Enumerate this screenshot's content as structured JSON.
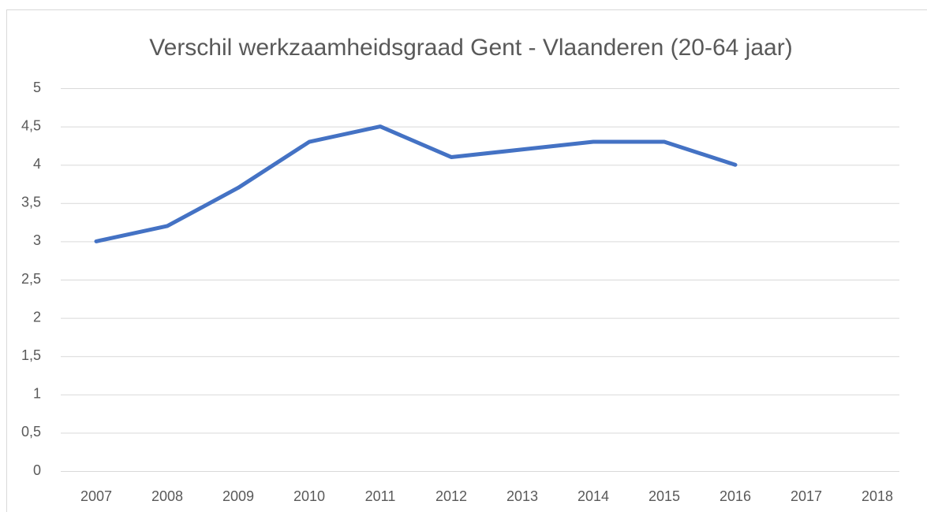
{
  "chart_data": {
    "type": "line",
    "title": "Verschil werkzaamheidsgraad Gent - Vlaanderen (20-64 jaar)",
    "categories": [
      "2007",
      "2008",
      "2009",
      "2010",
      "2011",
      "2012",
      "2013",
      "2014",
      "2015",
      "2016",
      "2017",
      "2018"
    ],
    "series": [
      {
        "name": "Verschil",
        "color": "#4472c4",
        "values": [
          3.0,
          3.2,
          3.7,
          4.3,
          4.5,
          4.1,
          4.2,
          4.3,
          4.3,
          4.0,
          null,
          null
        ]
      }
    ],
    "ylim": [
      0,
      5
    ],
    "yticks": [
      0,
      {
        "value": 0.5,
        "label": "0,5"
      },
      1,
      {
        "value": 1.5,
        "label": "1,5"
      },
      2,
      {
        "value": 2.5,
        "label": "2,5"
      },
      3,
      {
        "value": 3.5,
        "label": "3,5"
      },
      4,
      {
        "value": 4.5,
        "label": "4,5"
      },
      5
    ],
    "grid": true
  }
}
